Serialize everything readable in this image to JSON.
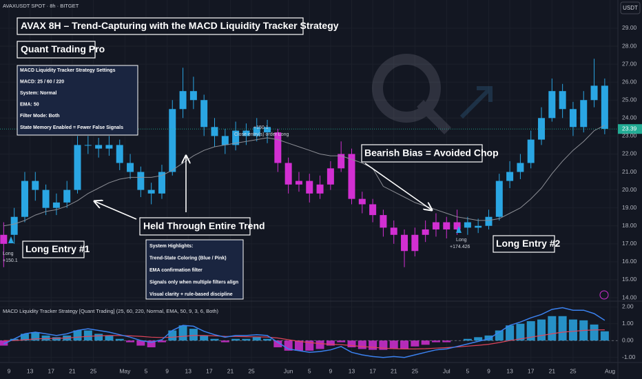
{
  "header": {
    "symbol": "AVAXUSDT SPOT · 8h · BITGET",
    "currency": "USDT"
  },
  "chart_data": [
    {
      "type": "candlestick",
      "title": "AVAX 8H – Trend-Capturing with the MACD Liquidity Tracker Strategy",
      "subtitle": "Quant Trading Pro",
      "x": [
        8,
        10,
        12,
        14,
        16,
        18,
        20,
        22,
        24,
        26,
        28,
        30,
        32,
        34,
        36,
        38,
        40,
        42,
        44,
        46,
        48,
        50,
        52,
        54,
        56,
        58,
        60,
        62,
        64,
        66,
        68,
        70,
        72,
        74,
        76,
        78,
        80,
        82,
        84,
        86,
        88,
        90,
        92,
        94,
        96,
        98,
        100,
        102,
        104,
        106,
        108,
        110,
        112,
        114,
        116,
        118,
        120,
        122
      ],
      "open": [
        17.0,
        17.5,
        18.5,
        20.5,
        20.0,
        19.0,
        19.3,
        20.0,
        22.5,
        22.5,
        22.3,
        22.5,
        21.5,
        21.0,
        20.0,
        19.8,
        21.0,
        24.5,
        25.5,
        25.0,
        23.5,
        23.0,
        22.5,
        23.3,
        23.0,
        23.5,
        23.2,
        21.5,
        20.3,
        20.5,
        19.8,
        20.3,
        21.2,
        22.0,
        19.5,
        19.2,
        18.6,
        17.9,
        17.5,
        16.6,
        17.5,
        17.8,
        18.2,
        17.8,
        18.2,
        17.9,
        18.0,
        18.5,
        20.5,
        21.0,
        21.5,
        22.8,
        24.0,
        25.5,
        24.5,
        23.5,
        25.0,
        25.8
      ],
      "high": [
        18.2,
        19.0,
        21.0,
        21.0,
        20.3,
        19.8,
        20.5,
        23.0,
        23.0,
        22.9,
        23.0,
        22.8,
        22.0,
        21.3,
        20.4,
        21.4,
        25.0,
        26.8,
        26.3,
        25.3,
        24.0,
        23.4,
        23.8,
        23.7,
        24.0,
        23.9,
        23.4,
        21.8,
        21.0,
        20.9,
        20.8,
        21.6,
        22.7,
        22.3,
        19.9,
        19.5,
        18.9,
        18.3,
        17.8,
        17.9,
        18.3,
        18.7,
        18.5,
        18.9,
        18.5,
        18.4,
        18.9,
        20.9,
        21.6,
        22.0,
        23.3,
        24.6,
        26.2,
        25.9,
        24.9,
        25.5,
        27.3,
        26.2
      ],
      "low": [
        15.7,
        17.0,
        18.2,
        19.4,
        18.6,
        18.6,
        19.0,
        19.8,
        22.0,
        21.8,
        21.9,
        21.1,
        20.6,
        19.6,
        19.2,
        19.5,
        20.8,
        24.0,
        24.5,
        23.0,
        22.4,
        22.0,
        22.2,
        22.5,
        22.7,
        22.6,
        21.0,
        19.8,
        19.9,
        19.3,
        19.5,
        20.0,
        21.0,
        19.2,
        18.7,
        18.2,
        17.4,
        17.0,
        15.7,
        16.3,
        17.1,
        17.4,
        17.3,
        17.5,
        17.5,
        17.6,
        17.8,
        18.3,
        20.1,
        20.6,
        21.2,
        22.5,
        23.8,
        24.0,
        23.0,
        23.2,
        24.6,
        23.1
      ],
      "close": [
        17.5,
        18.5,
        20.5,
        20.0,
        19.0,
        19.3,
        20.0,
        22.5,
        22.5,
        22.3,
        22.5,
        21.5,
        21.0,
        20.0,
        19.8,
        21.0,
        24.5,
        25.5,
        25.0,
        23.5,
        23.0,
        22.5,
        23.3,
        23.0,
        23.5,
        23.2,
        21.5,
        20.3,
        20.5,
        19.8,
        20.3,
        21.2,
        22.0,
        19.5,
        19.2,
        18.6,
        17.9,
        17.5,
        16.6,
        17.5,
        17.8,
        18.2,
        17.8,
        18.2,
        17.9,
        18.0,
        18.5,
        20.5,
        21.0,
        21.5,
        22.8,
        24.0,
        25.5,
        24.5,
        23.5,
        25.0,
        25.8,
        23.4
      ],
      "colors": [
        "#d22fd2",
        "#2aa6e3",
        "#2aa6e3",
        "#2aa6e3",
        "#2aa6e3",
        "#2aa6e3",
        "#2aa6e3",
        "#2aa6e3",
        "#2aa6e3",
        "#2aa6e3",
        "#2aa6e3",
        "#2aa6e3",
        "#2aa6e3",
        "#2aa6e3",
        "#2aa6e3",
        "#2aa6e3",
        "#2aa6e3",
        "#2aa6e3",
        "#2aa6e3",
        "#2aa6e3",
        "#2aa6e3",
        "#2aa6e3",
        "#2aa6e3",
        "#2aa6e3",
        "#2aa6e3",
        "#2aa6e3",
        "#d22fd2",
        "#d22fd2",
        "#d22fd2",
        "#d22fd2",
        "#d22fd2",
        "#d22fd2",
        "#d22fd2",
        "#d22fd2",
        "#d22fd2",
        "#d22fd2",
        "#d22fd2",
        "#d22fd2",
        "#d22fd2",
        "#d22fd2",
        "#d22fd2",
        "#d22fd2",
        "#d22fd2",
        "#d22fd2",
        "#2aa6e3",
        "#2aa6e3",
        "#2aa6e3",
        "#2aa6e3",
        "#2aa6e3",
        "#2aa6e3",
        "#2aa6e3",
        "#2aa6e3",
        "#2aa6e3",
        "#2aa6e3",
        "#2aa6e3",
        "#2aa6e3",
        "#2aa6e3",
        "#2aa6e3"
      ],
      "ema": {
        "color": "#8d8f96",
        "values": [
          18.0,
          18.1,
          18.3,
          18.6,
          18.8,
          18.9,
          19.1,
          19.4,
          19.8,
          20.1,
          20.4,
          20.6,
          20.7,
          20.7,
          20.7,
          20.8,
          21.1,
          21.5,
          21.9,
          22.2,
          22.4,
          22.5,
          22.6,
          22.7,
          22.8,
          22.9,
          22.8,
          22.6,
          22.4,
          22.2,
          22.0,
          21.9,
          21.9,
          21.7,
          21.5,
          21.2,
          20.2,
          19.9,
          19.6,
          19.3,
          19.1,
          18.9,
          18.7,
          18.5,
          18.4,
          18.3,
          18.3,
          18.4,
          18.7,
          19.0,
          19.5,
          20.1,
          20.9,
          21.6,
          22.2,
          22.7,
          23.3,
          23.6
        ]
      },
      "xlim": [
        7.3,
        124.5
      ],
      "xticks": [
        {
          "value": 9,
          "label": "9"
        },
        {
          "value": 13,
          "label": "13"
        },
        {
          "value": 17,
          "label": "17"
        },
        {
          "value": 21,
          "label": "21"
        },
        {
          "value": 25,
          "label": "25"
        },
        {
          "value": 31,
          "label": "May"
        },
        {
          "value": 35,
          "label": "5"
        },
        {
          "value": 39,
          "label": "9"
        },
        {
          "value": 43,
          "label": "13"
        },
        {
          "value": 47,
          "label": "17"
        },
        {
          "value": 51,
          "label": "21"
        },
        {
          "value": 55,
          "label": "25"
        },
        {
          "value": 62,
          "label": "Jun"
        },
        {
          "value": 66,
          "label": "5"
        },
        {
          "value": 70,
          "label": "9"
        },
        {
          "value": 74,
          "label": "13"
        },
        {
          "value": 78,
          "label": "17"
        },
        {
          "value": 82,
          "label": "21"
        },
        {
          "value": 86,
          "label": "25"
        },
        {
          "value": 92,
          "label": "Jul"
        },
        {
          "value": 96,
          "label": "5"
        },
        {
          "value": 100,
          "label": "9"
        },
        {
          "value": 104,
          "label": "13"
        },
        {
          "value": 108,
          "label": "17"
        },
        {
          "value": 112,
          "label": "21"
        },
        {
          "value": 116,
          "label": "25"
        },
        {
          "value": 123,
          "label": "Aug"
        }
      ],
      "ylim": [
        13.81,
        30.57
      ],
      "yticks": [
        {
          "value": 14,
          "label": "14.00"
        },
        {
          "value": 15,
          "label": "15.00"
        },
        {
          "value": 16,
          "label": "16.00"
        },
        {
          "value": 17,
          "label": "17.00"
        },
        {
          "value": 18,
          "label": "18.00"
        },
        {
          "value": 19,
          "label": "19.00"
        },
        {
          "value": 20,
          "label": "20.00"
        },
        {
          "value": 21,
          "label": "21.00"
        },
        {
          "value": 22,
          "label": "22.00"
        },
        {
          "value": 23,
          "label": "23.00"
        },
        {
          "value": 24,
          "label": "24.00"
        },
        {
          "value": 25,
          "label": "25.00"
        },
        {
          "value": 26,
          "label": "26.00"
        },
        {
          "value": 27,
          "label": "27.00"
        },
        {
          "value": 28,
          "label": "28.00"
        },
        {
          "value": 29,
          "label": "29.00"
        }
      ],
      "last_price": {
        "value": 23.39,
        "label": "23.39",
        "color": "#22ab94"
      },
      "settings": [
        "MACD Liquidity Tracker Strategy Settings",
        "MACD: 25 / 60 / 220",
        "System: Normal",
        "EMA: 50",
        "Filter Mode: Both",
        "State Memory Enabled = Fewer False Signals"
      ],
      "highlights": [
        "System Highlights:",
        "Trend-State Coloring (Blue / Pink)",
        "EMA confirmation filter",
        "Signals only when multiple filters align",
        "Visual clarity + rule-based discipline"
      ],
      "callouts": [
        "Held Through Entire Trend",
        "Long Entry #1",
        "Bearish Bias = Avoided Chop",
        "Long Entry #2"
      ],
      "signals": [
        {
          "label": "Long",
          "profit": "+150.1"
        },
        {
          "label": "Close entry(s) order Long",
          "profit": "+150.1"
        },
        {
          "label": "Long",
          "profit": "+174.426"
        }
      ]
    },
    {
      "type": "macd",
      "title": "MACD Liquidity Tracker Strategy [Quant Trading] (25, 60, 220, Normal, EMA, 50, 9, 3, 6, Both)",
      "histogram": [
        -0.3,
        0.1,
        0.4,
        0.5,
        0.3,
        0.2,
        0.3,
        0.6,
        0.6,
        0.4,
        0.3,
        0.1,
        -0.1,
        -0.3,
        -0.4,
        -0.1,
        0.6,
        0.9,
        0.7,
        0.3,
        0.1,
        -0.1,
        0.1,
        0.1,
        0.2,
        0.1,
        -0.4,
        -0.6,
        -0.6,
        -0.6,
        -0.5,
        -0.3,
        -0.1,
        -0.4,
        -0.5,
        -0.55,
        -0.55,
        -0.5,
        -0.5,
        -0.35,
        -0.25,
        -0.1,
        -0.1,
        0.0,
        0.1,
        0.2,
        0.3,
        0.6,
        0.9,
        1.0,
        1.15,
        1.25,
        1.45,
        1.45,
        1.25,
        1.2,
        0.95,
        0.55
      ],
      "macd": {
        "color": "#3b82f0",
        "values": [
          -0.2,
          0.1,
          0.4,
          0.5,
          0.4,
          0.3,
          0.4,
          0.6,
          0.7,
          0.6,
          0.5,
          0.35,
          0.2,
          0.0,
          -0.1,
          0.05,
          0.6,
          0.9,
          0.85,
          0.55,
          0.35,
          0.2,
          0.3,
          0.3,
          0.35,
          0.3,
          -0.1,
          -0.5,
          -0.6,
          -0.7,
          -0.65,
          -0.55,
          -0.35,
          -0.7,
          -0.85,
          -0.95,
          -1.0,
          -0.95,
          -1.0,
          -0.85,
          -0.7,
          -0.55,
          -0.5,
          -0.35,
          -0.2,
          -0.05,
          0.1,
          0.5,
          0.9,
          1.1,
          1.35,
          1.55,
          1.85,
          1.95,
          1.8,
          1.8,
          1.6,
          1.2
        ]
      },
      "signal": {
        "color": "#e0455a",
        "values": [
          0.0,
          0.0,
          0.05,
          0.1,
          0.12,
          0.13,
          0.15,
          0.2,
          0.25,
          0.28,
          0.3,
          0.3,
          0.28,
          0.25,
          0.2,
          0.18,
          0.2,
          0.25,
          0.3,
          0.3,
          0.28,
          0.25,
          0.24,
          0.23,
          0.22,
          0.21,
          0.15,
          0.05,
          -0.05,
          -0.12,
          -0.18,
          -0.22,
          -0.24,
          -0.3,
          -0.35,
          -0.4,
          -0.45,
          -0.48,
          -0.5,
          -0.5,
          -0.48,
          -0.45,
          -0.42,
          -0.38,
          -0.33,
          -0.28,
          -0.22,
          -0.12,
          0.0,
          0.1,
          0.2,
          0.3,
          0.4,
          0.5,
          0.55,
          0.6,
          0.63,
          0.64
        ]
      },
      "pos_color": "#2aa6e3",
      "neg_color": "#d22fd2",
      "ylim": [
        -1.3,
        2.34
      ],
      "yticks": [
        {
          "value": -1,
          "label": "-1.00"
        },
        {
          "value": 0,
          "label": "0.00"
        },
        {
          "value": 1,
          "label": "1.00"
        },
        {
          "value": 2,
          "label": "2.00"
        }
      ]
    }
  ]
}
